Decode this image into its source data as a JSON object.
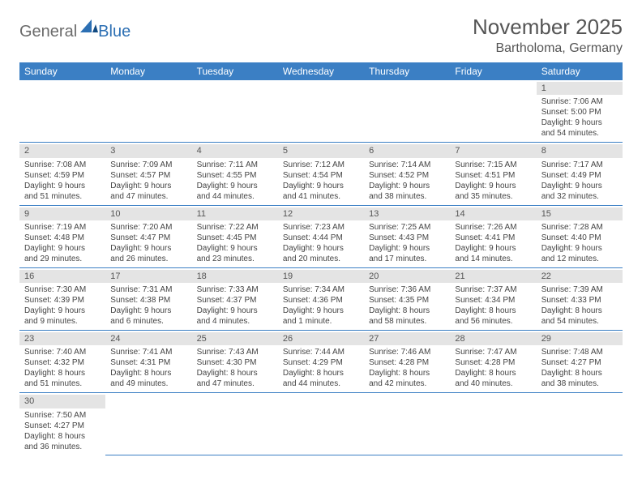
{
  "logo": {
    "part1": "General",
    "part2": "Blue"
  },
  "title": "November 2025",
  "location": "Bartholoma, Germany",
  "colors": {
    "header_bg": "#3b7fc4",
    "header_fg": "#ffffff",
    "daynum_bg": "#e4e4e4",
    "rule": "#3b7fc4",
    "logo_gray": "#6b6b6b",
    "logo_blue": "#2c6fb3"
  },
  "weekdays": [
    "Sunday",
    "Monday",
    "Tuesday",
    "Wednesday",
    "Thursday",
    "Friday",
    "Saturday"
  ],
  "weeks": [
    [
      null,
      null,
      null,
      null,
      null,
      null,
      {
        "n": "1",
        "sr": "Sunrise: 7:06 AM",
        "ss": "Sunset: 5:00 PM",
        "dl": "Daylight: 9 hours and 54 minutes."
      }
    ],
    [
      {
        "n": "2",
        "sr": "Sunrise: 7:08 AM",
        "ss": "Sunset: 4:59 PM",
        "dl": "Daylight: 9 hours and 51 minutes."
      },
      {
        "n": "3",
        "sr": "Sunrise: 7:09 AM",
        "ss": "Sunset: 4:57 PM",
        "dl": "Daylight: 9 hours and 47 minutes."
      },
      {
        "n": "4",
        "sr": "Sunrise: 7:11 AM",
        "ss": "Sunset: 4:55 PM",
        "dl": "Daylight: 9 hours and 44 minutes."
      },
      {
        "n": "5",
        "sr": "Sunrise: 7:12 AM",
        "ss": "Sunset: 4:54 PM",
        "dl": "Daylight: 9 hours and 41 minutes."
      },
      {
        "n": "6",
        "sr": "Sunrise: 7:14 AM",
        "ss": "Sunset: 4:52 PM",
        "dl": "Daylight: 9 hours and 38 minutes."
      },
      {
        "n": "7",
        "sr": "Sunrise: 7:15 AM",
        "ss": "Sunset: 4:51 PM",
        "dl": "Daylight: 9 hours and 35 minutes."
      },
      {
        "n": "8",
        "sr": "Sunrise: 7:17 AM",
        "ss": "Sunset: 4:49 PM",
        "dl": "Daylight: 9 hours and 32 minutes."
      }
    ],
    [
      {
        "n": "9",
        "sr": "Sunrise: 7:19 AM",
        "ss": "Sunset: 4:48 PM",
        "dl": "Daylight: 9 hours and 29 minutes."
      },
      {
        "n": "10",
        "sr": "Sunrise: 7:20 AM",
        "ss": "Sunset: 4:47 PM",
        "dl": "Daylight: 9 hours and 26 minutes."
      },
      {
        "n": "11",
        "sr": "Sunrise: 7:22 AM",
        "ss": "Sunset: 4:45 PM",
        "dl": "Daylight: 9 hours and 23 minutes."
      },
      {
        "n": "12",
        "sr": "Sunrise: 7:23 AM",
        "ss": "Sunset: 4:44 PM",
        "dl": "Daylight: 9 hours and 20 minutes."
      },
      {
        "n": "13",
        "sr": "Sunrise: 7:25 AM",
        "ss": "Sunset: 4:43 PM",
        "dl": "Daylight: 9 hours and 17 minutes."
      },
      {
        "n": "14",
        "sr": "Sunrise: 7:26 AM",
        "ss": "Sunset: 4:41 PM",
        "dl": "Daylight: 9 hours and 14 minutes."
      },
      {
        "n": "15",
        "sr": "Sunrise: 7:28 AM",
        "ss": "Sunset: 4:40 PM",
        "dl": "Daylight: 9 hours and 12 minutes."
      }
    ],
    [
      {
        "n": "16",
        "sr": "Sunrise: 7:30 AM",
        "ss": "Sunset: 4:39 PM",
        "dl": "Daylight: 9 hours and 9 minutes."
      },
      {
        "n": "17",
        "sr": "Sunrise: 7:31 AM",
        "ss": "Sunset: 4:38 PM",
        "dl": "Daylight: 9 hours and 6 minutes."
      },
      {
        "n": "18",
        "sr": "Sunrise: 7:33 AM",
        "ss": "Sunset: 4:37 PM",
        "dl": "Daylight: 9 hours and 4 minutes."
      },
      {
        "n": "19",
        "sr": "Sunrise: 7:34 AM",
        "ss": "Sunset: 4:36 PM",
        "dl": "Daylight: 9 hours and 1 minute."
      },
      {
        "n": "20",
        "sr": "Sunrise: 7:36 AM",
        "ss": "Sunset: 4:35 PM",
        "dl": "Daylight: 8 hours and 58 minutes."
      },
      {
        "n": "21",
        "sr": "Sunrise: 7:37 AM",
        "ss": "Sunset: 4:34 PM",
        "dl": "Daylight: 8 hours and 56 minutes."
      },
      {
        "n": "22",
        "sr": "Sunrise: 7:39 AM",
        "ss": "Sunset: 4:33 PM",
        "dl": "Daylight: 8 hours and 54 minutes."
      }
    ],
    [
      {
        "n": "23",
        "sr": "Sunrise: 7:40 AM",
        "ss": "Sunset: 4:32 PM",
        "dl": "Daylight: 8 hours and 51 minutes."
      },
      {
        "n": "24",
        "sr": "Sunrise: 7:41 AM",
        "ss": "Sunset: 4:31 PM",
        "dl": "Daylight: 8 hours and 49 minutes."
      },
      {
        "n": "25",
        "sr": "Sunrise: 7:43 AM",
        "ss": "Sunset: 4:30 PM",
        "dl": "Daylight: 8 hours and 47 minutes."
      },
      {
        "n": "26",
        "sr": "Sunrise: 7:44 AM",
        "ss": "Sunset: 4:29 PM",
        "dl": "Daylight: 8 hours and 44 minutes."
      },
      {
        "n": "27",
        "sr": "Sunrise: 7:46 AM",
        "ss": "Sunset: 4:28 PM",
        "dl": "Daylight: 8 hours and 42 minutes."
      },
      {
        "n": "28",
        "sr": "Sunrise: 7:47 AM",
        "ss": "Sunset: 4:28 PM",
        "dl": "Daylight: 8 hours and 40 minutes."
      },
      {
        "n": "29",
        "sr": "Sunrise: 7:48 AM",
        "ss": "Sunset: 4:27 PM",
        "dl": "Daylight: 8 hours and 38 minutes."
      }
    ],
    [
      {
        "n": "30",
        "sr": "Sunrise: 7:50 AM",
        "ss": "Sunset: 4:27 PM",
        "dl": "Daylight: 8 hours and 36 minutes."
      },
      null,
      null,
      null,
      null,
      null,
      null
    ]
  ]
}
